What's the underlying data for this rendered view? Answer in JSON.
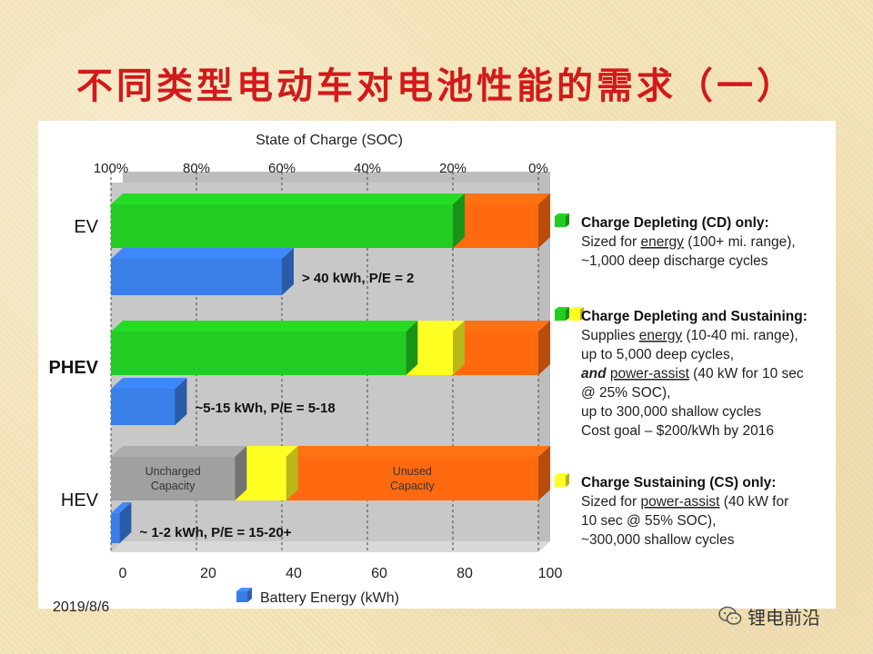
{
  "slide": {
    "title": "不同类型电动车对电池性能的需求（一）",
    "date": "2019/8/6",
    "brand": "锂电前沿"
  },
  "chart_data": {
    "type": "bar",
    "orientation": "horizontal",
    "top_axis": {
      "label": "State of Charge (SOC)",
      "ticks": [
        "100%",
        "80%",
        "60%",
        "40%",
        "20%",
        "0%"
      ],
      "range": [
        100,
        0
      ]
    },
    "bottom_axis": {
      "label": "Battery Energy (kWh)",
      "ticks": [
        0,
        20,
        40,
        60,
        80,
        100
      ],
      "range": [
        0,
        100
      ]
    },
    "vehicles": [
      {
        "name": "EV",
        "bold": false,
        "soc_segments": [
          {
            "kind": "cd",
            "from": 100,
            "to": 20,
            "label": ""
          },
          {
            "kind": "unused",
            "from": 20,
            "to": 0,
            "label": ""
          }
        ],
        "energy_kwh": 40,
        "energy_label": "> 40 kWh, P/E = 2"
      },
      {
        "name": "PHEV",
        "bold": true,
        "soc_segments": [
          {
            "kind": "cd",
            "from": 100,
            "to": 31,
            "label": ""
          },
          {
            "kind": "cs",
            "from": 31,
            "to": 20,
            "label": ""
          },
          {
            "kind": "unused",
            "from": 20,
            "to": 0,
            "label": ""
          }
        ],
        "energy_kwh": 15,
        "energy_label": "~5-15 kWh, P/E = 5-18"
      },
      {
        "name": "HEV",
        "bold": false,
        "soc_segments": [
          {
            "kind": "uncharged",
            "from": 100,
            "to": 71,
            "label": "Uncharged\nCapacity"
          },
          {
            "kind": "cs",
            "from": 71,
            "to": 59,
            "label": ""
          },
          {
            "kind": "unused",
            "from": 59,
            "to": 0,
            "label": "Unused\nCapacity"
          }
        ],
        "energy_kwh": 2,
        "energy_label": "~ 1-2 kWh, P/E = 15-20+"
      }
    ],
    "legend": [
      {
        "key": [
          "cd"
        ],
        "heading": "Charge Depleting (CD) only:",
        "lines": [
          [
            {
              "t": "Sized for "
            },
            {
              "t": "energy",
              "u": true
            },
            {
              "t": " (100+ mi. range),"
            }
          ],
          [
            {
              "t": "~1,000 deep discharge cycles"
            }
          ]
        ]
      },
      {
        "key": [
          "cd",
          "cs"
        ],
        "heading": "Charge Depleting and Sustaining:",
        "lines": [
          [
            {
              "t": "Supplies "
            },
            {
              "t": "energy",
              "u": true
            },
            {
              "t": " (10-40 mi. range),"
            }
          ],
          [
            {
              "t": "up to 5,000 deep cycles,"
            }
          ],
          [
            {
              "t": "and",
              "bi": true
            },
            {
              "t": " "
            },
            {
              "t": "power-assist",
              "u": true
            },
            {
              "t": " (40 kW  for 10 sec"
            }
          ],
          [
            {
              "t": "@ 25% SOC),"
            }
          ],
          [
            {
              "t": "up to 300,000 shallow cycles"
            }
          ],
          [
            {
              "t": "Cost goal – $200/kWh by 2016"
            }
          ]
        ]
      },
      {
        "key": [
          "cs"
        ],
        "heading": "Charge Sustaining (CS) only:",
        "lines": [
          [
            {
              "t": "Sized for "
            },
            {
              "t": "power-assist",
              "u": true
            },
            {
              "t": " (40 kW  for"
            }
          ],
          [
            {
              "t": "10 sec @ 55% SOC),"
            }
          ],
          [
            {
              "t": "~300,000 shallow cycles"
            }
          ]
        ]
      }
    ],
    "colors": {
      "cd": "#22cc22",
      "cs": "#ffff22",
      "unused": "#ff6a10",
      "uncharged": "#a0a0a0",
      "energy": "#3a7ee8",
      "plot_bg": "#c8c8c8",
      "title_red": "#d21a1a"
    }
  }
}
